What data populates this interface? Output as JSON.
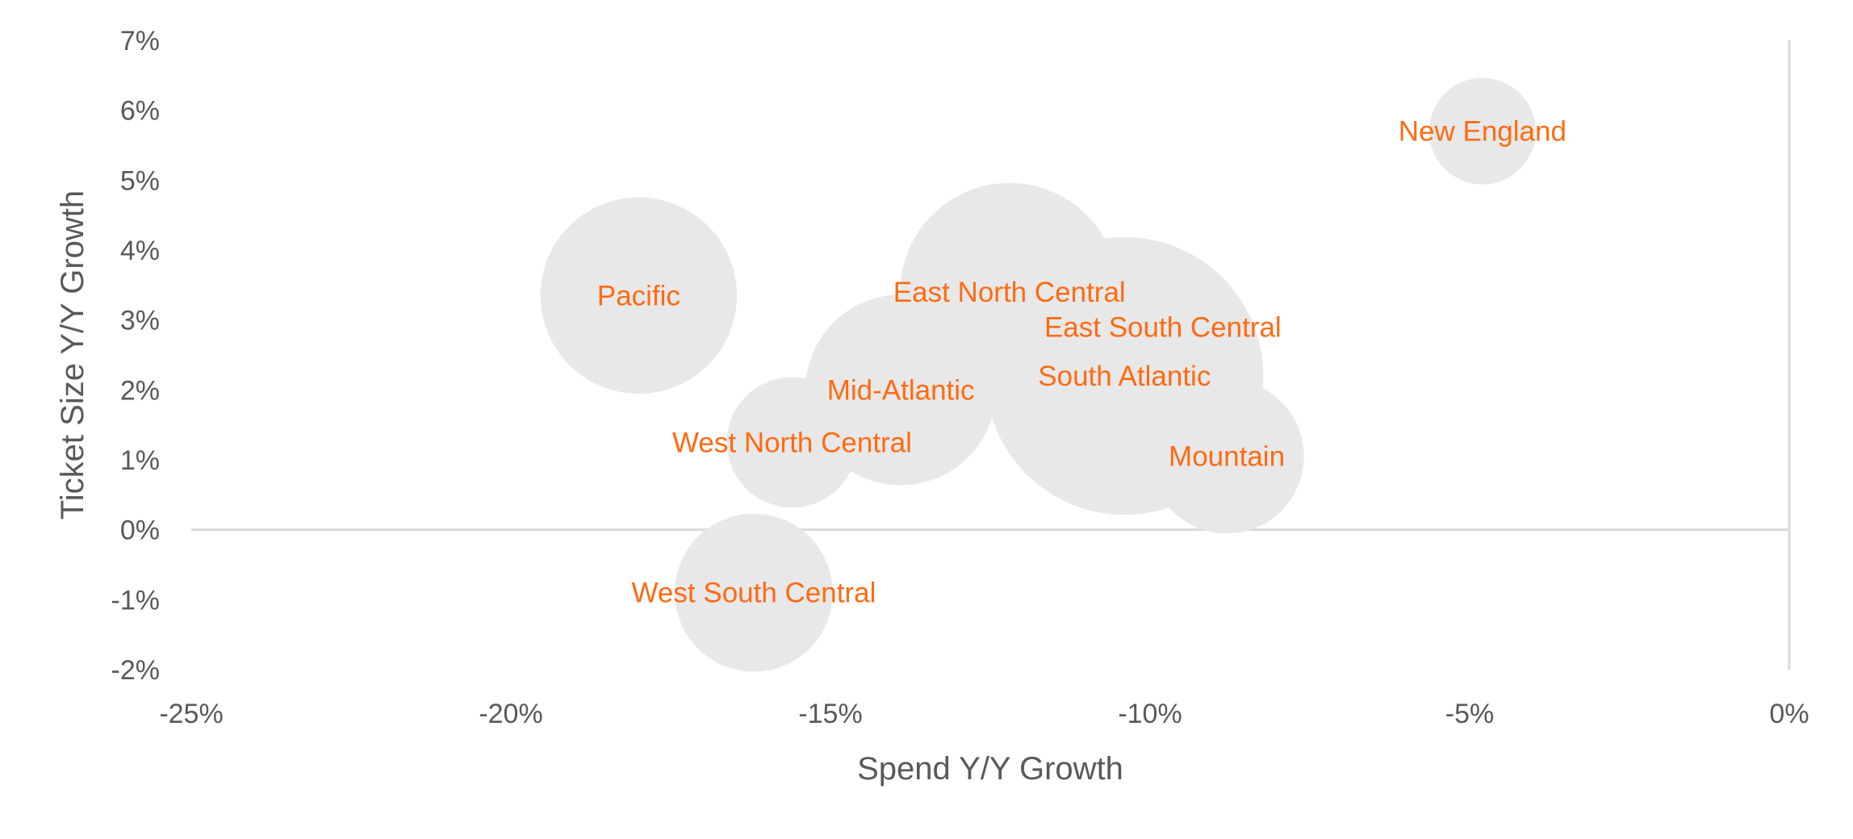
{
  "chart_data": {
    "type": "scatter",
    "subtype": "bubble",
    "title": "",
    "xlabel": "Spend Y/Y Growth",
    "ylabel": "Ticket Size Y/Y Growth",
    "xlim": [
      -25,
      0
    ],
    "ylim": [
      -2,
      7
    ],
    "x_ticks": [
      -25,
      -20,
      -15,
      -10,
      -5,
      0
    ],
    "y_ticks": [
      -2,
      -1,
      0,
      1,
      2,
      3,
      4,
      5,
      6,
      7
    ],
    "x_tick_labels": [
      "-25%",
      "-20%",
      "-15%",
      "-10%",
      "-5%",
      "0%"
    ],
    "y_tick_labels": [
      "-2%",
      "-1%",
      "0%",
      "1%",
      "2%",
      "3%",
      "4%",
      "5%",
      "6%",
      "7%"
    ],
    "grid": false,
    "legend": "none",
    "bubble_color": "#e8e8e8",
    "label_color": "#ff6a13",
    "points": [
      {
        "label": "New England",
        "x": -4.8,
        "y": 5.7,
        "size": 1.0
      },
      {
        "label": "Pacific",
        "x": -18.0,
        "y": 3.35,
        "size": 3.4
      },
      {
        "label": "East North Central",
        "x": -12.2,
        "y": 3.4,
        "size": 4.2
      },
      {
        "label": "East South Central",
        "x": -9.8,
        "y": 2.9,
        "size": 2.0
      },
      {
        "label": "South Atlantic",
        "x": -10.4,
        "y": 2.2,
        "size": 6.8
      },
      {
        "label": "Mid-Atlantic",
        "x": -13.9,
        "y": 2.0,
        "size": 3.2
      },
      {
        "label": "West North Central",
        "x": -15.6,
        "y": 1.25,
        "size": 1.5
      },
      {
        "label": "Mountain",
        "x": -8.8,
        "y": 1.05,
        "size": 2.1
      },
      {
        "label": "West South Central",
        "x": -16.2,
        "y": -0.9,
        "size": 2.2
      }
    ]
  }
}
